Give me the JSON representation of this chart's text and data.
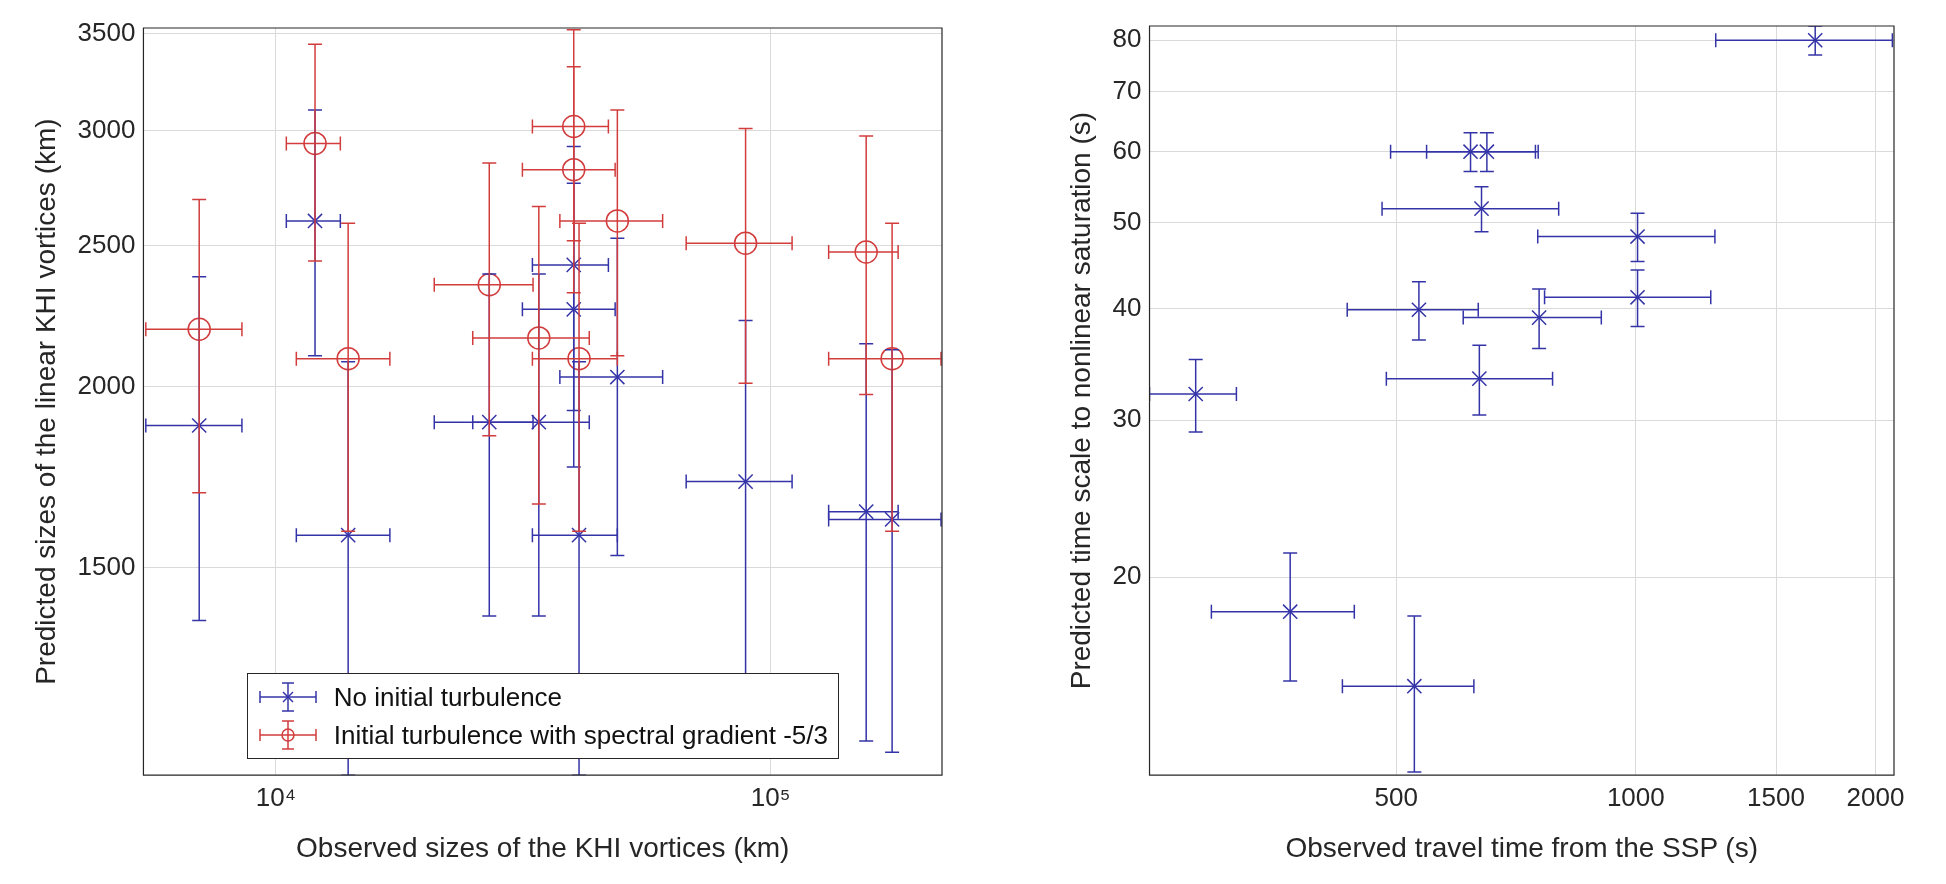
{
  "chart_data": [
    {
      "type": "scatter",
      "xlabel": "Observed sizes of the KHI vortices (km)",
      "ylabel": "Predicted sizes of the linear KHI vortices (km)",
      "log": "xy",
      "grid": true,
      "legend": "bottom",
      "xlim": [
        5400,
        222000
      ],
      "ylim": [
        1080,
        3530
      ],
      "xticks": [
        {
          "value": 10000,
          "label": "10⁴"
        },
        {
          "value": 100000,
          "label": "10⁵"
        }
      ],
      "yticks": [
        1500,
        2000,
        2500,
        3000,
        3500
      ],
      "series": [
        {
          "name": "No initial turbulence",
          "color": "#3434a8",
          "marker": "cross",
          "x": [
            7000,
            12000,
            27000,
            34000,
            40000,
            40000,
            49000,
            89000,
            14000,
            41000,
            156000,
            176000
          ],
          "values": [
            1880,
            2600,
            1890,
            1890,
            2425,
            2260,
            2030,
            1720,
            1580,
            1580,
            1640,
            1620
          ],
          "xerrors": [
            1540,
            1500,
            6100,
            9000,
            7000,
            8500,
            11500,
            21500,
            3000,
            8000,
            25000,
            45000
          ],
          "errors": [
            500,
            500,
            500,
            500,
            500,
            500,
            500,
            500,
            500,
            500,
            500,
            500
          ]
        },
        {
          "name": "Initial turbulence with spectral gradient -5/3",
          "color": "#d23c3c",
          "marker": "circle",
          "x": [
            7000,
            12000,
            14000,
            27000,
            34000,
            40000,
            40000,
            41000,
            49000,
            89000,
            156000,
            176000
          ],
          "values": [
            2190,
            2940,
            2090,
            2350,
            2160,
            3020,
            2820,
            2090,
            2600,
            2510,
            2475,
            2090
          ],
          "xerrors": [
            1540,
            1500,
            3000,
            6100,
            9000,
            7000,
            8500,
            8000,
            11500,
            21500,
            25000,
            45000
          ],
          "errors": [
            500,
            500,
            500,
            500,
            500,
            500,
            500,
            500,
            500,
            500,
            500,
            500
          ]
        }
      ]
    },
    {
      "type": "scatter",
      "xlabel": "Observed travel time from the SSP (s)",
      "ylabel": "Predicted time scale to nonlinear saturation (s)",
      "log": "xy",
      "grid": true,
      "xlim": [
        245,
        2110
      ],
      "ylim": [
        12,
        83
      ],
      "xticks": [
        500,
        1000,
        1500,
        2000
      ],
      "yticks": [
        20,
        30,
        40,
        50,
        60,
        70,
        80
      ],
      "series": [
        {
          "color": "#3434a8",
          "marker": "cross",
          "x": [
            1680,
            620,
            650,
            640,
            1005,
            1005,
            534,
            756,
            636,
            280,
            368,
            527
          ],
          "values": [
            80,
            60,
            60,
            51.8,
            48.2,
            41.2,
            39.9,
            39.1,
            33.4,
            32.1,
            18.3,
            15.1
          ],
          "xerrors": [
            420,
            128,
            104,
            160,
            252,
            237,
            100,
            149,
            150,
            35,
            75,
            99
          ],
          "errors": [
            3,
            3,
            3,
            3,
            3,
            3,
            3,
            3,
            3,
            3,
            3,
            3
          ]
        }
      ]
    }
  ]
}
